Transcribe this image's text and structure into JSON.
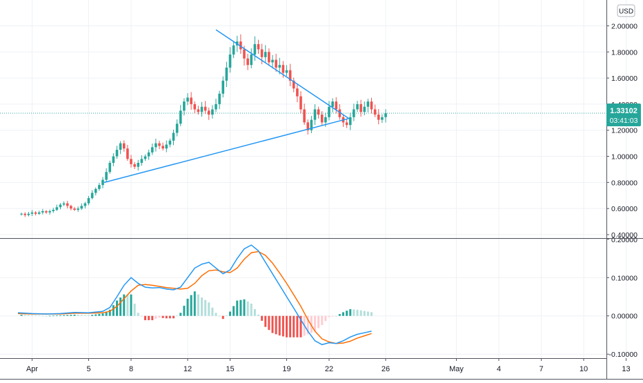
{
  "currency_button": "USD",
  "price_tag": {
    "value": "1.33102",
    "countdown": "03:41:03",
    "color": "#26a69a"
  },
  "colors": {
    "up": "#26a69a",
    "down": "#ef5350",
    "trendline": "#2196f3",
    "macd": "#2196f3",
    "signal": "#ff6d00",
    "hist_up_strong": "#26a69a",
    "hist_up_weak": "#b2dfdb",
    "hist_down_strong": "#ef5350",
    "hist_down_weak": "#ffcdd2",
    "grid": "#eef1f6"
  },
  "chart_data": [
    {
      "type": "candlestick",
      "name": "price",
      "x_range_days": [
        0,
        44.5
      ],
      "ylim": [
        0.4,
        2.05
      ],
      "y_ticks": [
        "2.00000",
        "1.80000",
        "1.60000",
        "1.40000",
        "1.20000",
        "1.00000",
        "0.80000",
        "0.60000",
        "0.40000"
      ],
      "y_tick_values": [
        2.0,
        1.8,
        1.6,
        1.4,
        1.2,
        1.0,
        0.8,
        0.6,
        0.4
      ],
      "x_ticks": [
        {
          "day": 1,
          "label": "Apr"
        },
        {
          "day": 5,
          "label": "5"
        },
        {
          "day": 8,
          "label": "8"
        },
        {
          "day": 12,
          "label": "12"
        },
        {
          "day": 15,
          "label": "15"
        },
        {
          "day": 19,
          "label": "19"
        },
        {
          "day": 22,
          "label": "22"
        },
        {
          "day": 26,
          "label": "26"
        },
        {
          "day": 31,
          "label": "May"
        },
        {
          "day": 34,
          "label": "4"
        },
        {
          "day": 37,
          "label": "7"
        },
        {
          "day": 40,
          "label": "10"
        },
        {
          "day": 43,
          "label": "13"
        }
      ],
      "current_price": 1.33102,
      "trendlines": [
        {
          "name": "upper-trendline",
          "from": [
            14.0,
            1.97
          ],
          "to": [
            23.4,
            1.29
          ]
        },
        {
          "name": "lower-trendline",
          "from": [
            6.1,
            0.8
          ],
          "to": [
            23.4,
            1.29
          ]
        }
      ],
      "closes": [
        0.56,
        0.55,
        0.56,
        0.57,
        0.56,
        0.57,
        0.58,
        0.57,
        0.58,
        0.59,
        0.61,
        0.63,
        0.64,
        0.62,
        0.6,
        0.59,
        0.6,
        0.62,
        0.64,
        0.68,
        0.72,
        0.75,
        0.78,
        0.82,
        0.88,
        0.95,
        1.0,
        1.05,
        1.1,
        1.06,
        0.98,
        0.94,
        0.92,
        0.95,
        0.98,
        1.0,
        1.03,
        1.07,
        1.1,
        1.08,
        1.06,
        1.09,
        1.12,
        1.18,
        1.25,
        1.35,
        1.42,
        1.45,
        1.4,
        1.36,
        1.34,
        1.38,
        1.35,
        1.32,
        1.36,
        1.4,
        1.48,
        1.58,
        1.68,
        1.78,
        1.85,
        1.88,
        1.82,
        1.75,
        1.7,
        1.78,
        1.86,
        1.82,
        1.76,
        1.8,
        1.72,
        1.74,
        1.68,
        1.7,
        1.64,
        1.66,
        1.58,
        1.52,
        1.46,
        1.36,
        1.26,
        1.2,
        1.28,
        1.36,
        1.32,
        1.26,
        1.3,
        1.38,
        1.42,
        1.36,
        1.3,
        1.26,
        1.24,
        1.3,
        1.36,
        1.4,
        1.34,
        1.38,
        1.42,
        1.36,
        1.32,
        1.28,
        1.3,
        1.33
      ]
    },
    {
      "type": "line",
      "name": "macd-indicator",
      "ylim": [
        -0.105,
        0.205
      ],
      "y_ticks": [
        "0.20000",
        "0.10000",
        "0.00000",
        "-0.10000"
      ],
      "y_tick_values": [
        0.2,
        0.1,
        0.0,
        -0.1
      ],
      "series": [
        {
          "key": "macd",
          "points": [
            [
              0,
              0.008
            ],
            [
              1,
              0.006
            ],
            [
              2,
              0.005
            ],
            [
              3,
              0.006
            ],
            [
              4,
              0.009
            ],
            [
              5,
              0.008
            ],
            [
              6,
              0.012
            ],
            [
              6.5,
              0.022
            ],
            [
              7,
              0.05
            ],
            [
              7.5,
              0.08
            ],
            [
              8,
              0.1
            ],
            [
              8.5,
              0.085
            ],
            [
              9,
              0.075
            ],
            [
              9.5,
              0.073
            ],
            [
              10,
              0.074
            ],
            [
              10.5,
              0.07
            ],
            [
              11,
              0.068
            ],
            [
              11.5,
              0.075
            ],
            [
              12,
              0.1
            ],
            [
              12.5,
              0.125
            ],
            [
              13,
              0.135
            ],
            [
              13.5,
              0.14
            ],
            [
              14,
              0.125
            ],
            [
              14.5,
              0.11
            ],
            [
              15,
              0.12
            ],
            [
              15.5,
              0.15
            ],
            [
              16,
              0.175
            ],
            [
              16.5,
              0.185
            ],
            [
              17,
              0.17
            ],
            [
              17.5,
              0.14
            ],
            [
              18,
              0.11
            ],
            [
              18.5,
              0.08
            ],
            [
              19,
              0.05
            ],
            [
              19.5,
              0.02
            ],
            [
              20,
              -0.01
            ],
            [
              20.5,
              -0.04
            ],
            [
              21,
              -0.065
            ],
            [
              21.5,
              -0.075
            ],
            [
              22,
              -0.07
            ],
            [
              22.5,
              -0.072
            ],
            [
              23,
              -0.065
            ],
            [
              23.5,
              -0.055
            ],
            [
              24,
              -0.048
            ],
            [
              24.5,
              -0.044
            ],
            [
              25,
              -0.04
            ]
          ]
        },
        {
          "key": "signal",
          "points": [
            [
              0,
              0.006
            ],
            [
              1,
              0.005
            ],
            [
              2,
              0.005
            ],
            [
              3,
              0.005
            ],
            [
              4,
              0.007
            ],
            [
              5,
              0.007
            ],
            [
              6,
              0.008
            ],
            [
              6.5,
              0.012
            ],
            [
              7,
              0.025
            ],
            [
              7.5,
              0.045
            ],
            [
              8,
              0.065
            ],
            [
              8.5,
              0.08
            ],
            [
              9,
              0.082
            ],
            [
              9.5,
              0.08
            ],
            [
              10,
              0.077
            ],
            [
              10.5,
              0.074
            ],
            [
              11,
              0.072
            ],
            [
              11.5,
              0.07
            ],
            [
              12,
              0.072
            ],
            [
              12.5,
              0.085
            ],
            [
              13,
              0.105
            ],
            [
              13.5,
              0.118
            ],
            [
              14,
              0.12
            ],
            [
              14.5,
              0.115
            ],
            [
              15,
              0.113
            ],
            [
              15.5,
              0.125
            ],
            [
              16,
              0.148
            ],
            [
              16.5,
              0.165
            ],
            [
              17,
              0.168
            ],
            [
              17.5,
              0.158
            ],
            [
              18,
              0.138
            ],
            [
              18.5,
              0.112
            ],
            [
              19,
              0.085
            ],
            [
              19.5,
              0.055
            ],
            [
              20,
              0.025
            ],
            [
              20.5,
              -0.01
            ],
            [
              21,
              -0.04
            ],
            [
              21.5,
              -0.06
            ],
            [
              22,
              -0.068
            ],
            [
              22.5,
              -0.072
            ],
            [
              23,
              -0.071
            ],
            [
              23.5,
              -0.066
            ],
            [
              24,
              -0.058
            ],
            [
              24.5,
              -0.052
            ],
            [
              25,
              -0.046
            ]
          ]
        }
      ]
    }
  ]
}
